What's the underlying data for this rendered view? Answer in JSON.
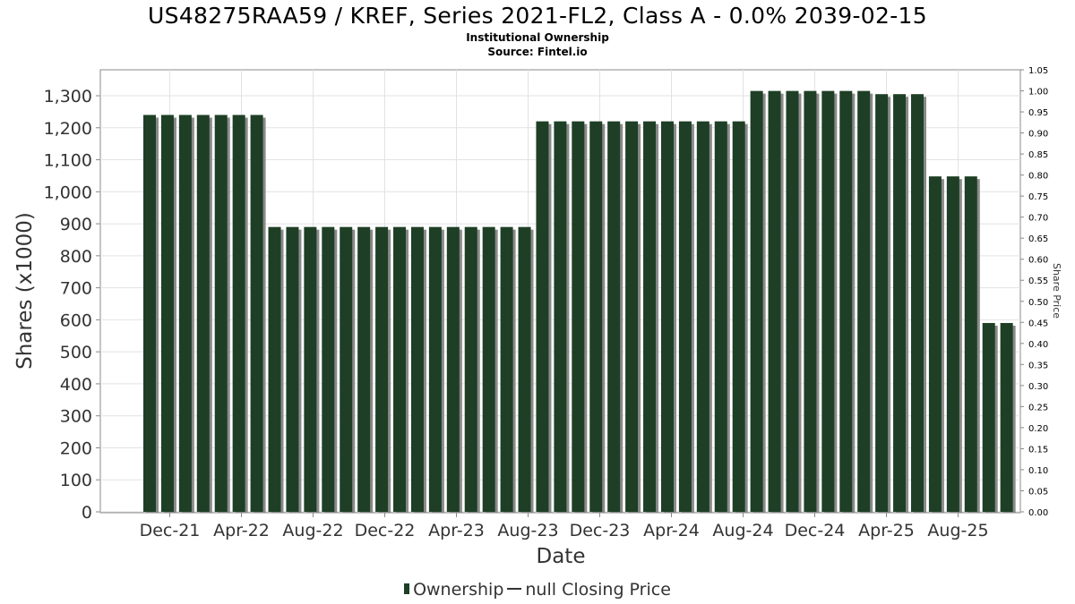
{
  "chart_data": {
    "type": "bar",
    "title": "US48275RAA59 / KREF, Series 2021-FL2, Class A - 0.0% 2039-02-15",
    "subtitle": "Institutional Ownership",
    "source": "Source: Fintel.io",
    "xlabel": "Date",
    "ylabel": "Shares (x1000)",
    "y2label": "Share Price",
    "ylim": [
      0,
      1380
    ],
    "y2lim": [
      0,
      1.05
    ],
    "y_ticks": [
      0,
      100,
      200,
      300,
      400,
      500,
      600,
      700,
      800,
      900,
      1000,
      1100,
      1200,
      1300
    ],
    "y_tick_labels": [
      "0",
      "100",
      "200",
      "300",
      "400",
      "500",
      "600",
      "700",
      "800",
      "900",
      "1,000",
      "1,100",
      "1,200",
      "1,300"
    ],
    "y2_tick_labels": [
      "0.00",
      "0.05",
      "0.10",
      "0.15",
      "0.20",
      "0.25",
      "0.30",
      "0.35",
      "0.40",
      "0.45",
      "0.50",
      "0.55",
      "0.60",
      "0.65",
      "0.70",
      "0.75",
      "0.80",
      "0.85",
      "0.90",
      "0.95",
      "1.00",
      "1.05"
    ],
    "x_tick_labels": [
      "Dec-21",
      "Apr-22",
      "Aug-22",
      "Dec-22",
      "Apr-23",
      "Aug-23",
      "Dec-23",
      "Apr-24",
      "Aug-24",
      "Dec-24",
      "Apr-25",
      "Aug-25"
    ],
    "grid": true,
    "legend_position": "bottom",
    "colors": {
      "bar": "#1e3f25",
      "bar_shadow": "#8a8a8a",
      "grid": "#e2e2e2",
      "frame": "#888888"
    },
    "series": [
      {
        "name": "Ownership",
        "values": [
          1240,
          1240,
          1240,
          1240,
          1240,
          1240,
          1240,
          890,
          890,
          890,
          890,
          890,
          890,
          890,
          890,
          890,
          890,
          890,
          890,
          890,
          890,
          890,
          1220,
          1220,
          1220,
          1220,
          1220,
          1220,
          1220,
          1220,
          1220,
          1220,
          1220,
          1220,
          1315,
          1315,
          1315,
          1315,
          1315,
          1315,
          1315,
          1305,
          1305,
          1305,
          1048,
          1048,
          1048,
          590,
          590
        ]
      }
    ]
  },
  "legend": {
    "ownership_label": "Ownership",
    "price_label": "null Closing Price"
  }
}
